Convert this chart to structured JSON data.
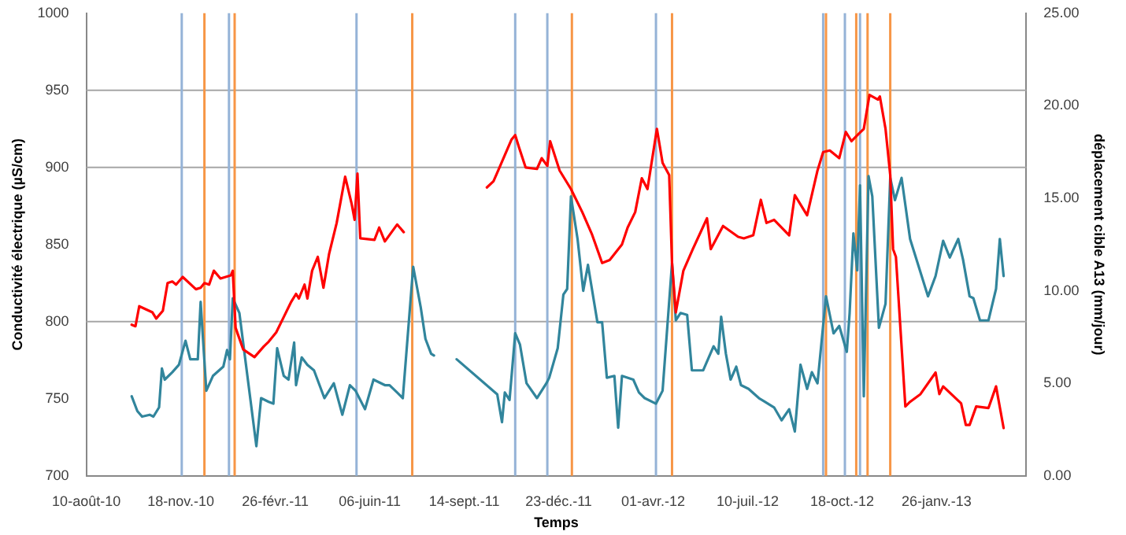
{
  "chart_data": {
    "type": "line",
    "xlabel": "Temps",
    "ylabel": "Conductivité électrique (µS/cm)",
    "y2label": "déplacement cible A13 (mm/jour)",
    "xlim": [
      "2010-08-10",
      "2013-05-01"
    ],
    "xticks": [
      {
        "value": "2010-08-10",
        "label": "10-août-10"
      },
      {
        "value": "2010-11-18",
        "label": "18-nov.-10"
      },
      {
        "value": "2011-02-26",
        "label": "26-févr.-11"
      },
      {
        "value": "2011-06-06",
        "label": "06-juin-11"
      },
      {
        "value": "2011-09-14",
        "label": "14-sept.-11"
      },
      {
        "value": "2011-12-23",
        "label": "23-déc.-11"
      },
      {
        "value": "2012-04-01",
        "label": "01-avr.-12"
      },
      {
        "value": "2012-07-10",
        "label": "10-juil.-12"
      },
      {
        "value": "2012-10-18",
        "label": "18-oct.-12"
      },
      {
        "value": "2013-01-26",
        "label": "26-janv.-13"
      }
    ],
    "ylim": [
      700,
      1000
    ],
    "yticks": [
      700,
      750,
      800,
      850,
      900,
      950,
      1000
    ],
    "y2lim": [
      0,
      25
    ],
    "y2ticks": [
      {
        "value": 0,
        "label": "0.00"
      },
      {
        "value": 5,
        "label": "5.00"
      },
      {
        "value": 10,
        "label": "10.00"
      },
      {
        "value": 15,
        "label": "15.00"
      },
      {
        "value": 20,
        "label": "20.00"
      },
      {
        "value": 25,
        "label": "25.00"
      }
    ],
    "grid": false,
    "legend": false,
    "marker": "none",
    "series": [
      {
        "color": "#ff0000",
        "x": [
          "2010-09-27",
          "2010-10-01",
          "2010-10-05",
          "2010-10-19",
          "2010-10-23",
          "2010-10-30",
          "2010-11-04",
          "2010-11-09",
          "2010-11-13",
          "2010-11-20",
          "2010-12-04",
          "2010-12-09",
          "2010-12-13",
          "2010-12-18",
          "2010-12-23",
          "2010-12-30",
          "2011-01-10",
          "2011-01-12",
          "2011-01-15",
          "2011-01-23",
          "2011-02-04",
          "2011-02-14",
          "2011-02-19",
          "2011-02-27",
          "2011-03-07",
          "2011-03-15",
          "2011-03-20",
          "2011-03-23",
          "2011-03-29",
          "2011-04-01",
          "2011-04-06",
          "2011-04-12",
          "2011-04-18",
          "2011-04-24",
          "2011-05-02",
          "2011-05-11",
          "2011-05-18",
          "2011-05-21",
          "2011-05-24",
          "2011-05-27",
          "2011-06-11",
          "2011-06-16",
          "2011-06-22",
          "2011-07-05",
          "2011-07-12",
          "2011-08-25",
          "2011-10-08",
          "2011-10-15",
          "2011-10-20",
          "2011-10-27",
          "2011-11-03",
          "2011-11-07",
          "2011-11-11",
          "2011-11-18",
          "2011-11-30",
          "2011-12-05",
          "2011-12-11",
          "2011-12-14",
          "2011-12-24",
          "2012-01-05",
          "2012-01-17",
          "2012-01-27",
          "2012-02-07",
          "2012-02-15",
          "2012-02-28",
          "2012-03-05",
          "2012-03-13",
          "2012-03-20",
          "2012-03-26",
          "2012-04-05",
          "2012-04-11",
          "2012-04-18",
          "2012-04-21",
          "2012-04-25",
          "2012-05-03",
          "2012-05-13",
          "2012-05-28",
          "2012-06-01",
          "2012-06-14",
          "2012-06-30",
          "2012-07-06",
          "2012-07-16",
          "2012-07-24",
          "2012-07-30",
          "2012-08-07",
          "2012-08-23",
          "2012-08-29",
          "2012-09-11",
          "2012-09-22",
          "2012-09-28",
          "2012-10-05",
          "2012-10-15",
          "2012-10-22",
          "2012-10-28",
          "2012-11-05",
          "2012-11-10",
          "2012-11-16",
          "2012-11-25",
          "2012-11-27",
          "2012-12-03",
          "2012-12-08",
          "2012-12-11",
          "2012-12-14",
          "2012-12-24",
          "2012-12-29",
          "2013-01-09",
          "2013-01-25",
          "2013-01-29",
          "2013-02-02",
          "2013-02-21",
          "2013-02-26",
          "2013-03-02",
          "2013-03-09",
          "2013-03-22",
          "2013-03-30",
          "2013-04-07"
        ],
        "values": [
          798,
          797,
          810,
          806,
          802,
          807,
          825,
          826,
          824,
          829,
          821,
          822,
          825,
          824,
          833,
          828,
          830,
          833,
          796,
          782,
          777,
          784,
          787,
          793,
          803,
          813,
          818,
          815,
          824,
          815,
          833,
          842,
          822,
          844,
          864,
          894,
          876,
          866,
          896,
          854,
          853,
          861,
          852,
          863,
          858,
          null,
          887,
          891,
          898,
          908,
          918,
          921,
          913,
          900,
          899,
          906,
          901,
          917,
          898,
          886,
          871,
          857,
          838,
          840,
          850,
          861,
          871,
          893,
          886,
          925,
          903,
          895,
          838,
          806,
          833,
          847,
          867,
          847,
          862,
          855,
          854,
          856,
          879,
          864,
          866,
          856,
          882,
          869,
          898,
          910,
          911,
          906,
          923,
          917,
          922,
          925,
          947,
          944,
          946,
          925,
          895,
          847,
          842,
          745,
          748,
          753,
          767,
          753,
          758,
          747,
          733,
          733,
          745,
          744,
          758,
          731
        ]
      },
      {
        "color": "#31859c",
        "axis": "y2",
        "x": [
          "2010-09-27",
          "2010-10-03",
          "2010-10-08",
          "2010-10-16",
          "2010-10-20",
          "2010-10-26",
          "2010-10-29",
          "2010-11-01",
          "2010-11-09",
          "2010-11-16",
          "2010-11-23",
          "2010-11-28",
          "2010-12-06",
          "2010-12-09",
          "2010-12-15",
          "2010-12-22",
          "2011-01-02",
          "2011-01-06",
          "2011-01-09",
          "2011-01-12",
          "2011-01-19",
          "2011-01-26",
          "2011-02-06",
          "2011-02-11",
          "2011-02-19",
          "2011-02-24",
          "2011-02-28",
          "2011-03-07",
          "2011-03-12",
          "2011-03-18",
          "2011-03-20",
          "2011-03-26",
          "2011-04-01",
          "2011-04-08",
          "2011-04-19",
          "2011-04-29",
          "2011-05-08",
          "2011-05-16",
          "2011-05-22",
          "2011-06-01",
          "2011-06-10",
          "2011-06-22",
          "2011-06-27",
          "2011-07-05",
          "2011-07-11",
          "2011-07-22",
          "2011-07-30",
          "2011-08-04",
          "2011-08-10",
          "2011-08-13",
          "2011-08-25",
          "2011-09-06",
          "2011-10-19",
          "2011-10-24",
          "2011-10-27",
          "2011-11-01",
          "2011-11-07",
          "2011-11-12",
          "2011-11-19",
          "2011-11-30",
          "2011-12-10",
          "2011-12-13",
          "2011-12-22",
          "2011-12-28",
          "2012-01-01",
          "2012-01-05",
          "2012-01-12",
          "2012-01-18",
          "2012-01-23",
          "2012-02-02",
          "2012-02-07",
          "2012-02-12",
          "2012-02-20",
          "2012-02-24",
          "2012-02-28",
          "2012-03-11",
          "2012-03-17",
          "2012-03-23",
          "2012-04-04",
          "2012-04-11",
          "2012-04-21",
          "2012-04-25",
          "2012-04-30",
          "2012-05-07",
          "2012-05-12",
          "2012-05-24",
          "2012-06-04",
          "2012-06-09",
          "2012-06-12",
          "2012-06-17",
          "2012-06-22",
          "2012-06-28",
          "2012-07-03",
          "2012-07-11",
          "2012-07-22",
          "2012-08-07",
          "2012-08-15",
          "2012-08-23",
          "2012-08-29",
          "2012-09-04",
          "2012-09-11",
          "2012-09-16",
          "2012-09-22",
          "2012-10-01",
          "2012-10-09",
          "2012-10-15",
          "2012-10-23",
          "2012-10-26",
          "2012-10-30",
          "2012-11-03",
          "2012-11-06",
          "2012-11-10",
          "2012-11-15",
          "2012-11-19",
          "2012-11-26",
          "2012-12-03",
          "2012-12-08",
          "2012-12-13",
          "2012-12-20",
          "2012-12-29",
          "2013-01-17",
          "2013-01-25",
          "2013-02-02",
          "2013-02-09",
          "2013-02-18",
          "2013-02-23",
          "2013-03-02",
          "2013-03-06",
          "2013-03-13",
          "2013-03-22",
          "2013-03-30",
          "2013-04-03",
          "2013-04-07"
        ],
        "values": [
          4.3,
          3.5,
          3.2,
          3.3,
          3.2,
          3.7,
          5.8,
          5.2,
          5.6,
          6.0,
          7.3,
          6.3,
          6.3,
          9.4,
          4.6,
          5.4,
          5.9,
          6.8,
          6.3,
          9.6,
          8.8,
          6.0,
          1.6,
          4.2,
          4.0,
          3.9,
          6.9,
          5.4,
          5.2,
          7.2,
          4.9,
          6.4,
          6.0,
          5.7,
          4.2,
          5.0,
          3.3,
          4.9,
          4.6,
          3.6,
          5.2,
          4.9,
          4.9,
          4.5,
          4.2,
          11.3,
          9.1,
          7.4,
          6.6,
          6.5,
          null,
          6.3,
          4.4,
          2.9,
          4.5,
          4.1,
          7.7,
          7.1,
          5.0,
          4.2,
          5.0,
          5.3,
          6.9,
          9.8,
          10.1,
          15.1,
          12.8,
          10.0,
          11.4,
          8.3,
          8.3,
          5.3,
          5.4,
          2.6,
          5.4,
          5.2,
          4.5,
          4.2,
          3.9,
          4.6,
          11.5,
          8.4,
          8.8,
          8.7,
          5.7,
          5.7,
          7.0,
          6.6,
          8.6,
          6.6,
          5.2,
          5.9,
          4.9,
          4.7,
          4.2,
          3.7,
          3.0,
          3.6,
          2.4,
          6.0,
          4.7,
          5.6,
          5.0,
          9.7,
          7.7,
          8.1,
          6.7,
          8.8,
          13.1,
          11.1,
          15.7,
          4.3,
          16.2,
          15.1,
          8.0,
          9.3,
          16.1,
          14.9,
          16.1,
          12.8,
          9.7,
          10.8,
          12.7,
          11.8,
          12.8,
          11.7,
          9.7,
          9.6,
          8.4,
          8.4,
          10.1,
          12.8,
          10.8
        ]
      }
    ],
    "ref_lines": [
      {
        "axis": "y",
        "value": 800,
        "color": "#a6a6a6"
      },
      {
        "axis": "y",
        "value": 900,
        "color": "#a6a6a6"
      },
      {
        "axis": "y",
        "value": 950,
        "color": "#a6a6a6"
      },
      {
        "axis": "x",
        "value": "2010-11-19",
        "color": "#95b3d7"
      },
      {
        "axis": "x",
        "value": "2010-12-13",
        "color": "#f79646"
      },
      {
        "axis": "x",
        "value": "2011-01-08",
        "color": "#95b3d7"
      },
      {
        "axis": "x",
        "value": "2011-01-14",
        "color": "#f79646"
      },
      {
        "axis": "x",
        "value": "2011-05-23",
        "color": "#95b3d7"
      },
      {
        "axis": "x",
        "value": "2011-07-21",
        "color": "#f79646"
      },
      {
        "axis": "x",
        "value": "2011-11-07",
        "color": "#95b3d7"
      },
      {
        "axis": "x",
        "value": "2011-12-11",
        "color": "#95b3d7"
      },
      {
        "axis": "x",
        "value": "2012-01-06",
        "color": "#f79646"
      },
      {
        "axis": "x",
        "value": "2012-04-04",
        "color": "#95b3d7"
      },
      {
        "axis": "x",
        "value": "2012-04-21",
        "color": "#f79646"
      },
      {
        "axis": "x",
        "value": "2012-09-28",
        "color": "#95b3d7"
      },
      {
        "axis": "x",
        "value": "2012-10-01",
        "color": "#f79646"
      },
      {
        "axis": "x",
        "value": "2012-10-21",
        "color": "#95b3d7"
      },
      {
        "axis": "x",
        "value": "2012-11-02",
        "color": "#f79646"
      },
      {
        "axis": "x",
        "value": "2012-11-06",
        "color": "#95b3d7"
      },
      {
        "axis": "x",
        "value": "2012-11-14",
        "color": "#f79646"
      },
      {
        "axis": "x",
        "value": "2012-12-08",
        "color": "#f79646"
      }
    ]
  }
}
